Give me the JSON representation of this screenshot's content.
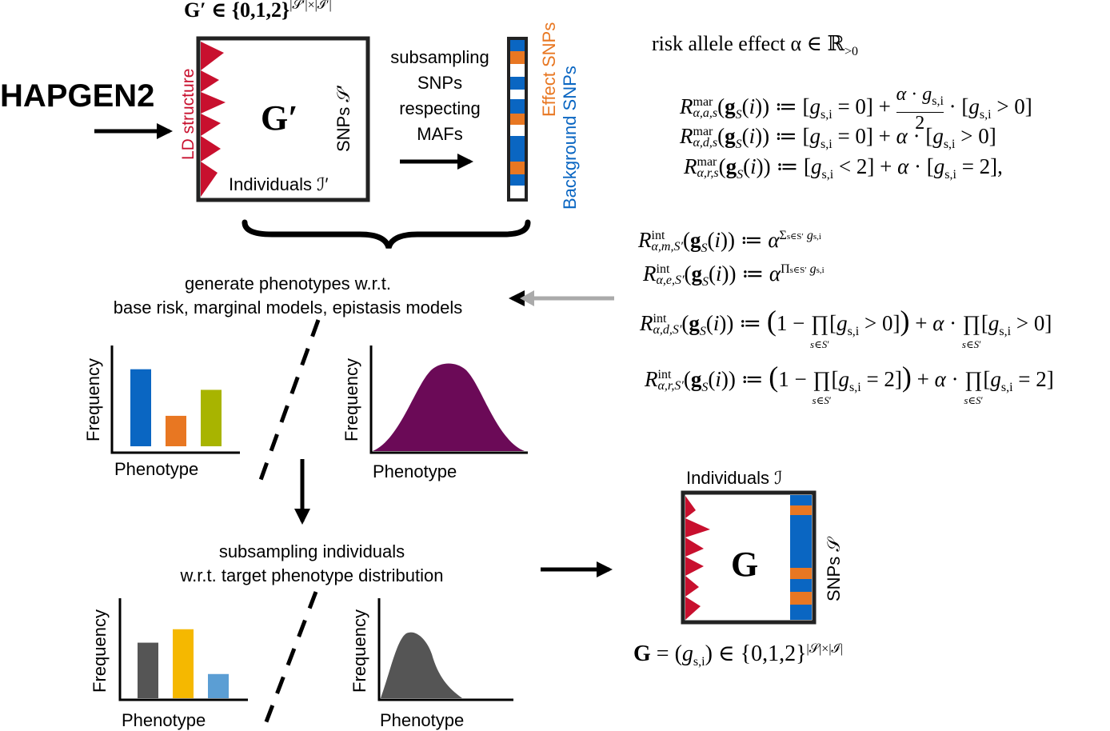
{
  "colors": {
    "ld_red": "#c8102e",
    "effect_orange": "#e87722",
    "background_blue": "#0a66c2",
    "purple": "#6b0a57",
    "gray_dark": "#555555",
    "gold": "#f5b800",
    "light_blue": "#5b9ed4",
    "olive": "#a8b400",
    "arrow_gray": "#aaaaaa"
  },
  "source": {
    "tool": "HAPGEN2",
    "matrix_def": "G′ ∈ {0,1,2}",
    "matrix_def_exp": "|𝒮′|×|ℐ′|",
    "matrix_symbol": "G′",
    "ld_label": "LD structure",
    "snps_label": "SNPs 𝒮′",
    "individuals_label": "Individuals ℐ′"
  },
  "subsample_snps": {
    "line1": "subsampling",
    "line2": "SNPs",
    "line3": "respecting",
    "line4": "MAFs",
    "effect_label": "Effect SNPs",
    "background_label": "Background SNPs"
  },
  "risk_models": {
    "header": "risk allele effect α ∈ ℝ",
    "header_sub": ">0",
    "marginal": [
      {
        "lhs_sub": "α,a,s",
        "rhs": "[g_{s,i} = 0] + (α · g_{s,i} / 2) · [g_{s,i} > 0]"
      },
      {
        "lhs_sub": "α,d,s",
        "rhs": "[g_{s,i} = 0] + α · [g_{s,i} > 0]"
      },
      {
        "lhs_sub": "α,r,s",
        "rhs": "[g_{s,i} < 2] + α · [g_{s,i} = 2],"
      }
    ],
    "interaction": [
      {
        "lhs_sub": "α,m,S′",
        "rhs": "α^(Σ_{s∈S′} g_{s,i})"
      },
      {
        "lhs_sub": "α,e,S′",
        "rhs": "α^(Π_{s∈S′} g_{s,i})"
      },
      {
        "lhs_sub": "α,d,S′",
        "rhs": "(1 − Π_{s∈S′}[g_{s,i} > 0]) + α · Π_{s∈S′}[g_{s,i} > 0]"
      },
      {
        "lhs_sub": "α,r,S′",
        "rhs": "(1 − Π_{s∈S′}[g_{s,i} = 2]) + α · Π_{s∈S′}[g_{s,i} = 2]"
      }
    ]
  },
  "generate": {
    "line1": "generate phenotypes w.r.t.",
    "line2": "base risk, marginal models, epistasis models"
  },
  "subsample_individuals": {
    "line1": "subsampling individuals",
    "line2": "w.r.t. target phenotype distribution"
  },
  "axis": {
    "ylabel": "Frequency",
    "xlabel": "Phenotype"
  },
  "generated_bars": {
    "values": [
      0.86,
      0.34,
      0.63
    ],
    "colors": [
      "#0a66c2",
      "#e87722",
      "#a8b400"
    ]
  },
  "target_bars": {
    "values": [
      0.62,
      0.77,
      0.27
    ],
    "colors": [
      "#555555",
      "#f5b800",
      "#5b9ed4"
    ]
  },
  "result": {
    "individuals_label": "Individuals ℐ",
    "snps_label": "SNPs 𝒮",
    "matrix_symbol": "G",
    "definition": "G = (g",
    "definition_sub": "s,i",
    "definition_rest": ") ∈ {0,1,2}",
    "definition_exp": "|𝒮|×|ℐ|"
  }
}
